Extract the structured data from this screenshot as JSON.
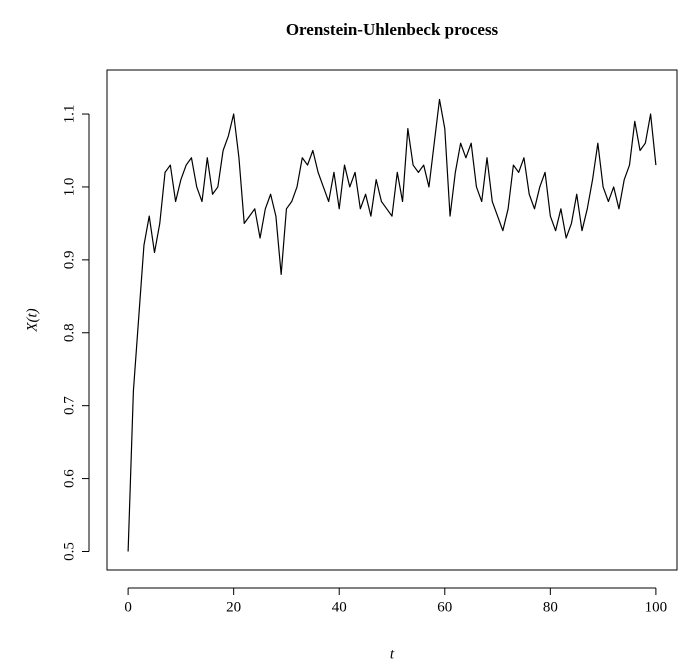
{
  "chart_data": {
    "type": "line",
    "title": "Orenstein-Uhlenbeck process",
    "x_label": "t",
    "y_label": "X(t)",
    "x": [
      0,
      1,
      2,
      3,
      4,
      5,
      6,
      7,
      8,
      9,
      10,
      11,
      12,
      13,
      14,
      15,
      16,
      17,
      18,
      19,
      20,
      21,
      22,
      23,
      24,
      25,
      26,
      27,
      28,
      29,
      30,
      31,
      32,
      33,
      34,
      35,
      36,
      37,
      38,
      39,
      40,
      41,
      42,
      43,
      44,
      45,
      46,
      47,
      48,
      49,
      50,
      51,
      52,
      53,
      54,
      55,
      56,
      57,
      58,
      59,
      60,
      61,
      62,
      63,
      64,
      65,
      66,
      67,
      68,
      69,
      70,
      71,
      72,
      73,
      74,
      75,
      76,
      77,
      78,
      79,
      80,
      81,
      82,
      83,
      84,
      85,
      86,
      87,
      88,
      89,
      90,
      91,
      92,
      93,
      94,
      95,
      96,
      97,
      98,
      99,
      100
    ],
    "series": [
      {
        "name": "X(t)",
        "color": "#000000",
        "values": [
          0.5,
          0.72,
          0.82,
          0.92,
          0.96,
          0.91,
          0.95,
          1.02,
          1.03,
          0.98,
          1.01,
          1.03,
          1.04,
          1.0,
          0.98,
          1.04,
          0.99,
          1.0,
          1.05,
          1.07,
          1.1,
          1.04,
          0.95,
          0.96,
          0.97,
          0.93,
          0.97,
          0.99,
          0.96,
          0.88,
          0.97,
          0.98,
          1.0,
          1.04,
          1.03,
          1.05,
          1.02,
          1.0,
          0.98,
          1.02,
          0.97,
          1.03,
          1.0,
          1.02,
          0.97,
          0.99,
          0.96,
          1.01,
          0.98,
          0.97,
          0.96,
          1.02,
          0.98,
          1.08,
          1.03,
          1.02,
          1.03,
          1.0,
          1.06,
          1.12,
          1.08,
          0.96,
          1.02,
          1.06,
          1.04,
          1.06,
          1.0,
          0.98,
          1.04,
          0.98,
          0.96,
          0.94,
          0.97,
          1.03,
          1.02,
          1.04,
          0.99,
          0.97,
          1.0,
          1.02,
          0.96,
          0.94,
          0.97,
          0.93,
          0.95,
          0.99,
          0.94,
          0.97,
          1.01,
          1.06,
          1.0,
          0.98,
          1.0,
          0.97,
          1.01,
          1.03,
          1.09,
          1.05,
          1.06,
          1.1,
          1.03
        ]
      }
    ],
    "xlim": [
      -4,
      104
    ],
    "ylim": [
      0.4746,
      1.1604
    ],
    "xticks": [
      0,
      20,
      40,
      60,
      80,
      100
    ],
    "yticks": [
      0.5,
      0.6,
      0.7,
      0.8,
      0.9,
      {
        "value": 1,
        "label": "1.0"
      },
      1.1
    ]
  }
}
